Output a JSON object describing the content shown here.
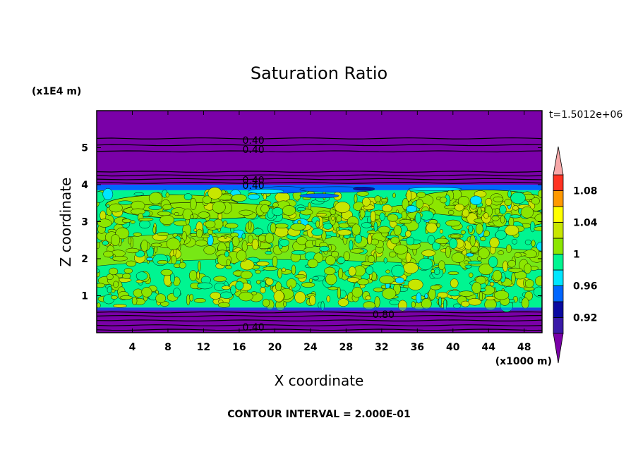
{
  "chart_data": {
    "type": "heatmap",
    "title": "Saturation Ratio",
    "xlabel": "X coordinate",
    "ylabel": "Z coordinate",
    "x_scale_label": "(x1000 m)",
    "y_scale_label": "(x1E4 m)",
    "time_label": "t=1.5012e+06",
    "footer": "CONTOUR INTERVAL = 2.000E-01",
    "xlim": [
      0,
      50
    ],
    "ylim": [
      0,
      6
    ],
    "x_ticks": [
      4,
      8,
      12,
      16,
      20,
      24,
      28,
      32,
      36,
      40,
      44,
      48
    ],
    "y_ticks": [
      1,
      2,
      3,
      4,
      5
    ],
    "contour_labels": [
      {
        "text": "0.40",
        "x": 17.6,
        "y": 5.2
      },
      {
        "text": "0.40",
        "x": 17.6,
        "y": 4.95
      },
      {
        "text": "0.40",
        "x": 17.6,
        "y": 4.12
      },
      {
        "text": "0.40",
        "x": 17.6,
        "y": 3.98
      },
      {
        "text": "0.80",
        "x": 32.2,
        "y": 0.5
      },
      {
        "text": "0.40",
        "x": 17.6,
        "y": 0.15
      }
    ],
    "colorbar": {
      "levels": [
        0.9,
        0.92,
        0.94,
        0.96,
        0.98,
        1.0,
        1.02,
        1.04,
        1.06,
        1.08,
        1.1
      ],
      "labels": [
        "0.92",
        "0.96",
        "1",
        "1.04",
        "1.08"
      ],
      "label_values": [
        0.92,
        0.96,
        1.0,
        1.04,
        1.08
      ],
      "colors": [
        "#3a1aa8",
        "#0a0aa0",
        "#0066ff",
        "#00e6ff",
        "#00f591",
        "#8ce600",
        "#c8e600",
        "#ffff00",
        "#ff9900",
        "#ff3322"
      ],
      "under_color": "#7a00a8",
      "over_color": "#f7a8a8"
    },
    "layers": [
      {
        "from": 0.0,
        "to": 0.6,
        "value": 0.4,
        "description_color": "#7a00a8"
      },
      {
        "from": 0.6,
        "to": 0.68,
        "value": 0.93,
        "description_color": "#3a1aa8"
      },
      {
        "from": 0.68,
        "to": 3.85,
        "value": 0.99,
        "description_color": "#00f591"
      },
      {
        "from": 3.85,
        "to": 4.0,
        "value": 0.94,
        "description_color": "#0066ff"
      },
      {
        "from": 4.0,
        "to": 6.0,
        "value": 0.4,
        "description_color": "#7a00a8"
      }
    ],
    "horizontal_contours_y": [
      0.08,
      0.2,
      0.33,
      0.45,
      0.55,
      4.05,
      4.15,
      4.25,
      4.35,
      4.9,
      5.07,
      5.25
    ]
  }
}
